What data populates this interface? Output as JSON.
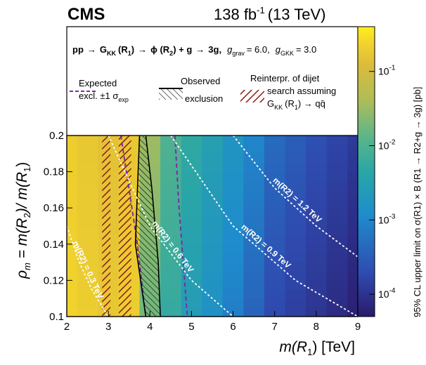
{
  "header": {
    "experiment": "CMS",
    "lumi_value": "138 fb",
    "lumi_exp": "-1",
    "energy": "(13 TeV)"
  },
  "process": {
    "pp": "pp",
    "g_kk": "G",
    "g_kk_sub": "KK",
    "r1": "(R",
    "r1_sub": "1",
    "phi": "ϕ (R",
    "phi_sub": "2",
    "plus_g": ") + g",
    "three_g": "3g,",
    "g_grav": "g",
    "g_grav_sub": "grav",
    "g_grav_val": "= 6.0,",
    "g_gkk": "g",
    "g_gkk_sub": "GKK",
    "g_gkk_val": "= 3.0",
    "arrow": "→"
  },
  "legend": {
    "expected_line1": "Expected",
    "expected_line2": "excl. ±1 σ",
    "expected_sub": "exp",
    "observed_line1": "Observed",
    "observed_line2": "exclusion",
    "reinterp_line1": "Reinterpr. of dijet",
    "reinterp_line2": "search assuming",
    "reinterp_line3": "G",
    "reinterp_sub1": "KK",
    "reinterp_line3b": "(R",
    "reinterp_sub2": "1",
    "reinterp_line3c": ") → qq̄"
  },
  "colorbar": {
    "label": "95% CL upper limit on σ(R1) × B (R1 → R2+g → 3g) [pb]",
    "ticks": [
      "10",
      "10",
      "10",
      "10"
    ],
    "tick_exps": [
      "-1",
      "-2",
      "-3",
      "-4"
    ],
    "tick_values": [
      0.1,
      0.01,
      0.001,
      0.0001
    ],
    "range": [
      5e-05,
      0.4
    ],
    "colors": [
      "#2a1a6b",
      "#2f4bb0",
      "#1e8ccd",
      "#2aa6a6",
      "#5cb58a",
      "#b0bd57",
      "#dcbc3a",
      "#f5d62a",
      "#fbf01e"
    ]
  },
  "axes": {
    "xlabel_main": "m(R",
    "xlabel_sub": "1",
    "xlabel_unit": ") [TeV]",
    "ylabel": "ρ",
    "ylabel_sub": "m",
    "ylabel_rest": " = m(R",
    "ylabel_sub2": "2",
    "ylabel_mid": ")/ m(R",
    "ylabel_sub3": "1",
    "ylabel_end": ")",
    "xticks": [
      "2",
      "3",
      "4",
      "5",
      "6",
      "7",
      "8",
      "9"
    ],
    "yticks": [
      "0.1",
      "0.12",
      "0.14",
      "0.16",
      "0.18",
      "0.2"
    ]
  },
  "chart_data": {
    "type": "heatmap",
    "xlim": [
      2,
      9
    ],
    "ylim": [
      0.1,
      0.2
    ],
    "z_scale": "log",
    "heatmap_columns": [
      {
        "x": 2.0,
        "log10_limit": -1.0
      },
      {
        "x": 2.5,
        "log10_limit": -1.1
      },
      {
        "x": 3.0,
        "log10_limit": -1.2
      },
      {
        "x": 3.5,
        "log10_limit": -1.1
      },
      {
        "x": 4.0,
        "log10_limit": -2.1
      },
      {
        "x": 4.5,
        "log10_limit": -2.6
      },
      {
        "x": 5.0,
        "log10_limit": -2.9
      },
      {
        "x": 5.5,
        "log10_limit": -3.1
      },
      {
        "x": 6.0,
        "log10_limit": -3.3
      },
      {
        "x": 6.5,
        "log10_limit": -3.5
      },
      {
        "x": 7.0,
        "log10_limit": -3.7
      },
      {
        "x": 7.5,
        "log10_limit": -3.8
      },
      {
        "x": 8.0,
        "log10_limit": -3.9
      },
      {
        "x": 8.5,
        "log10_limit": -4.0
      },
      {
        "x": 9.0,
        "log10_limit": -4.1
      }
    ],
    "curves": [
      {
        "name": "m(R2) = 0.3 TeV",
        "points": [
          [
            2.0,
            0.15
          ],
          [
            2.3,
            0.13
          ],
          [
            2.6,
            0.115
          ],
          [
            3.0,
            0.1
          ]
        ],
        "label": "m(R2) = 0.3 TeV"
      },
      {
        "name": "m(R2) = 0.6 TeV",
        "points": [
          [
            3.0,
            0.2
          ],
          [
            4.0,
            0.15
          ],
          [
            5.0,
            0.12
          ],
          [
            6.0,
            0.1
          ]
        ],
        "label": "m(R2) = 0.6 TeV"
      },
      {
        "name": "m(R2) = 0.9 TeV",
        "points": [
          [
            4.5,
            0.2
          ],
          [
            6.0,
            0.15
          ],
          [
            7.5,
            0.12
          ],
          [
            9.0,
            0.1
          ]
        ],
        "label": "m(R2) = 0.9 TeV"
      },
      {
        "name": "m(R2) = 1.2 TeV",
        "points": [
          [
            6.0,
            0.2
          ],
          [
            7.0,
            0.171
          ],
          [
            8.0,
            0.15
          ],
          [
            9.0,
            0.133
          ]
        ],
        "label": "m(R2) = 1.2 TeV"
      }
    ],
    "observed_exclusion": {
      "left": [
        [
          3.75,
          0.2
        ],
        [
          3.7,
          0.17
        ],
        [
          3.65,
          0.14
        ],
        [
          3.9,
          0.1
        ]
      ],
      "right": [
        [
          3.9,
          0.2
        ],
        [
          4.05,
          0.17
        ],
        [
          4.2,
          0.13
        ],
        [
          4.25,
          0.1
        ]
      ]
    },
    "expected_band": {
      "lower": [
        [
          3.3,
          0.2
        ],
        [
          3.5,
          0.17
        ],
        [
          3.7,
          0.14
        ],
        [
          3.9,
          0.1
        ]
      ],
      "upper": [
        [
          4.6,
          0.2
        ],
        [
          4.7,
          0.16
        ],
        [
          4.8,
          0.13
        ],
        [
          4.9,
          0.1
        ]
      ]
    },
    "reinterp_regions": [
      {
        "x": [
          2.85,
          3.05
        ]
      },
      {
        "x": [
          3.25,
          3.55
        ]
      }
    ]
  }
}
